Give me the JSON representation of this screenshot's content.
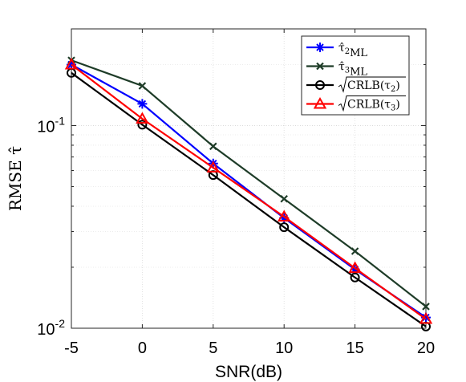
{
  "chart_data": {
    "type": "line",
    "xlabel": "SNR(dB)",
    "ylabel": "RMSE τ̂",
    "x": [
      -5,
      0,
      5,
      10,
      15,
      20
    ],
    "xticks": [
      "-5",
      "0",
      "5",
      "10",
      "15",
      "20"
    ],
    "xlim": [
      -5,
      20
    ],
    "ylim": [
      0.01,
      0.3
    ],
    "yscale": "log",
    "yticks": [
      {
        "base": "10",
        "exp": "-1",
        "value": 0.1
      },
      {
        "base": "10",
        "exp": "-2",
        "value": 0.01
      }
    ],
    "grid": true,
    "legend_position": "top-right",
    "series": [
      {
        "name": "τ̂2ML",
        "label_main": "τ̂",
        "label_sub1": "2",
        "label_sub2": "ML",
        "color": "#0000ff",
        "marker": "star",
        "values": [
          0.2,
          0.128,
          0.065,
          0.035,
          0.0195,
          0.0113
        ]
      },
      {
        "name": "τ̂3ML",
        "label_main": "τ̂",
        "label_sub1": "3",
        "label_sub2": "ML",
        "color": "#1e3c28",
        "marker": "x",
        "values": [
          0.21,
          0.157,
          0.079,
          0.0435,
          0.024,
          0.0128
        ]
      },
      {
        "name": "√CRLB(τ2)",
        "label_main": "CRLB(τ",
        "label_sub1": "2",
        "label_sub2": ")",
        "color": "#000000",
        "marker": "circle",
        "values": [
          0.182,
          0.101,
          0.057,
          0.0315,
          0.0178,
          0.0102
        ]
      },
      {
        "name": "√CRLB(τ3)",
        "label_main": "CRLB(τ",
        "label_sub1": "3",
        "label_sub2": ")",
        "color": "#ff0000",
        "marker": "triangle",
        "values": [
          0.2,
          0.108,
          0.062,
          0.0355,
          0.0198,
          0.0111
        ]
      }
    ]
  }
}
